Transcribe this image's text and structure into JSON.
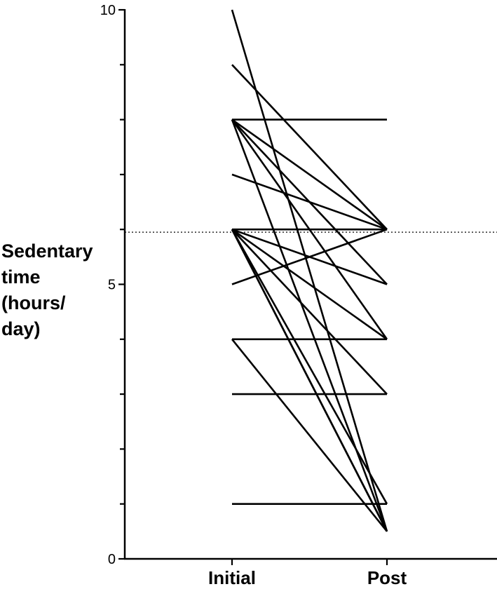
{
  "chart_data": {
    "type": "line",
    "title": "",
    "xlabel": "",
    "ylabel_lines": [
      "Sedentary",
      "time",
      "(hours/",
      "day)"
    ],
    "categories": [
      "Initial",
      "Post"
    ],
    "y_ticks": [
      0,
      5,
      10
    ],
    "ylim": [
      0,
      10
    ],
    "reference_line": {
      "y": 5.95,
      "style": "dotted"
    },
    "series": [
      {
        "values": [
          10,
          0.5
        ]
      },
      {
        "values": [
          9,
          6
        ]
      },
      {
        "values": [
          8,
          8
        ]
      },
      {
        "values": [
          8,
          6
        ]
      },
      {
        "values": [
          8,
          5
        ]
      },
      {
        "values": [
          8,
          4
        ]
      },
      {
        "values": [
          8,
          0.5
        ]
      },
      {
        "values": [
          7,
          6
        ]
      },
      {
        "values": [
          6,
          6
        ]
      },
      {
        "values": [
          6,
          5
        ]
      },
      {
        "values": [
          6,
          4
        ]
      },
      {
        "values": [
          6,
          3
        ]
      },
      {
        "values": [
          6,
          1
        ]
      },
      {
        "values": [
          6,
          0.5
        ]
      },
      {
        "values": [
          6,
          0.5
        ]
      },
      {
        "values": [
          5,
          6
        ]
      },
      {
        "values": [
          4,
          4
        ]
      },
      {
        "values": [
          4,
          0.5
        ]
      },
      {
        "values": [
          3,
          3
        ]
      },
      {
        "values": [
          1,
          1
        ]
      }
    ],
    "grid": false,
    "colors": {
      "lines": "#000000",
      "axis": "#000000",
      "reference": "#000000"
    }
  }
}
